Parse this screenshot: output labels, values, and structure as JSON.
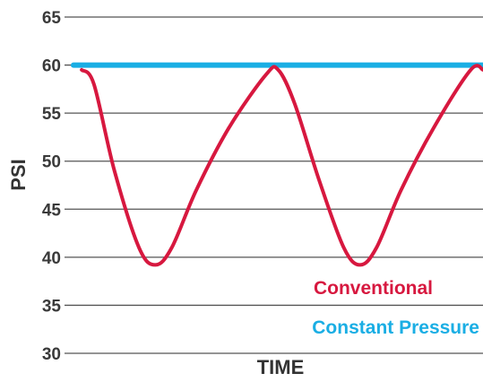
{
  "chart_data": {
    "type": "line",
    "xlabel": "TIME",
    "ylabel": "PSI",
    "ylim": [
      30,
      65
    ],
    "xlim": [
      0,
      100
    ],
    "yticks": [
      "30",
      "35",
      "40",
      "45",
      "50",
      "55",
      "60",
      "65"
    ],
    "grid": true,
    "legend": "bottom-right",
    "series": [
      {
        "name": "Constant Pressure",
        "color": "#1AAEE4",
        "x": [
          0,
          100
        ],
        "y": [
          60,
          60
        ]
      },
      {
        "name": "Conventional",
        "color": "#D7183F",
        "x": [
          2,
          5,
          10,
          16,
          20,
          24,
          30,
          38,
          47,
          50,
          54,
          60,
          66,
          70,
          74,
          80,
          88,
          97,
          100
        ],
        "y": [
          59.5,
          58,
          49,
          41,
          39.2,
          41,
          47,
          53.5,
          59,
          59.5,
          56,
          48,
          41,
          39.2,
          41,
          47,
          53.5,
          59.5,
          59.5
        ]
      }
    ]
  }
}
